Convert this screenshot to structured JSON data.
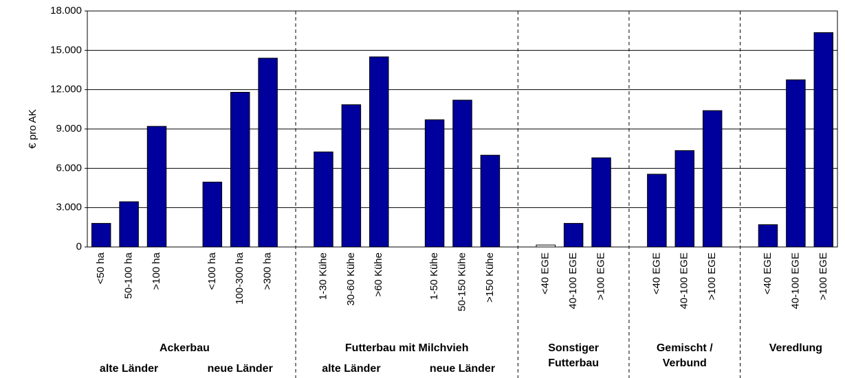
{
  "chart_data": {
    "type": "bar",
    "y_label": "€ pro AK",
    "categories": [
      "<50 ha",
      "50-100 ha",
      ">100 ha",
      null,
      "<100 ha",
      "100-300 ha",
      ">300 ha",
      null,
      "1-30 Kühe",
      "30-60 Kühe",
      ">60 Kühe",
      null,
      "1-50 Kühe",
      "50-150 Kühe",
      ">150 Kühe",
      null,
      "<40 EGE",
      "40-100 EGE",
      ">100 EGE",
      null,
      "<40 EGE",
      "40-100 EGE",
      ">100 EGE",
      null,
      "<40 EGE",
      "40-100 EGE",
      ">100 EGE"
    ],
    "values": [
      1800,
      3450,
      9200,
      null,
      4950,
      11800,
      14400,
      null,
      7250,
      10850,
      14500,
      null,
      9700,
      11200,
      7000,
      null,
      150,
      1800,
      6800,
      null,
      5550,
      7350,
      10400,
      null,
      1700,
      12750,
      16350
    ],
    "colors": [
      "#00009c",
      "#00009c",
      "#00009c",
      null,
      "#00009c",
      "#00009c",
      "#00009c",
      null,
      "#00009c",
      "#00009c",
      "#00009c",
      null,
      "#00009c",
      "#00009c",
      "#00009c",
      null,
      "#ffffff",
      "#00009c",
      "#00009c",
      null,
      "#00009c",
      "#00009c",
      "#00009c",
      null,
      "#00009c",
      "#00009c",
      "#00009c"
    ],
    "groups": [
      {
        "label": [
          "Ackerbau"
        ],
        "subgroups": [
          "alte Länder",
          "neue Länder"
        ]
      },
      {
        "label": [
          "Futterbau mit Milchvieh"
        ],
        "subgroups": [
          "alte Länder",
          "neue Länder"
        ]
      },
      {
        "label": [
          "Sonstiger",
          "Futterbau"
        ]
      },
      {
        "label": [
          "Gemischt /",
          "Verbund"
        ]
      },
      {
        "label": [
          "Veredlung"
        ]
      }
    ],
    "ylim": [
      0,
      18000
    ],
    "yticks": [
      {
        "value": 0,
        "label": "0"
      },
      {
        "value": 3000,
        "label": "3.000"
      },
      {
        "value": 6000,
        "label": "6.000"
      },
      {
        "value": 9000,
        "label": "9.000"
      },
      {
        "value": 12000,
        "label": "12.000"
      },
      {
        "value": 15000,
        "label": "15.000"
      },
      {
        "value": 18000,
        "label": "18.000"
      }
    ],
    "grid": true
  }
}
